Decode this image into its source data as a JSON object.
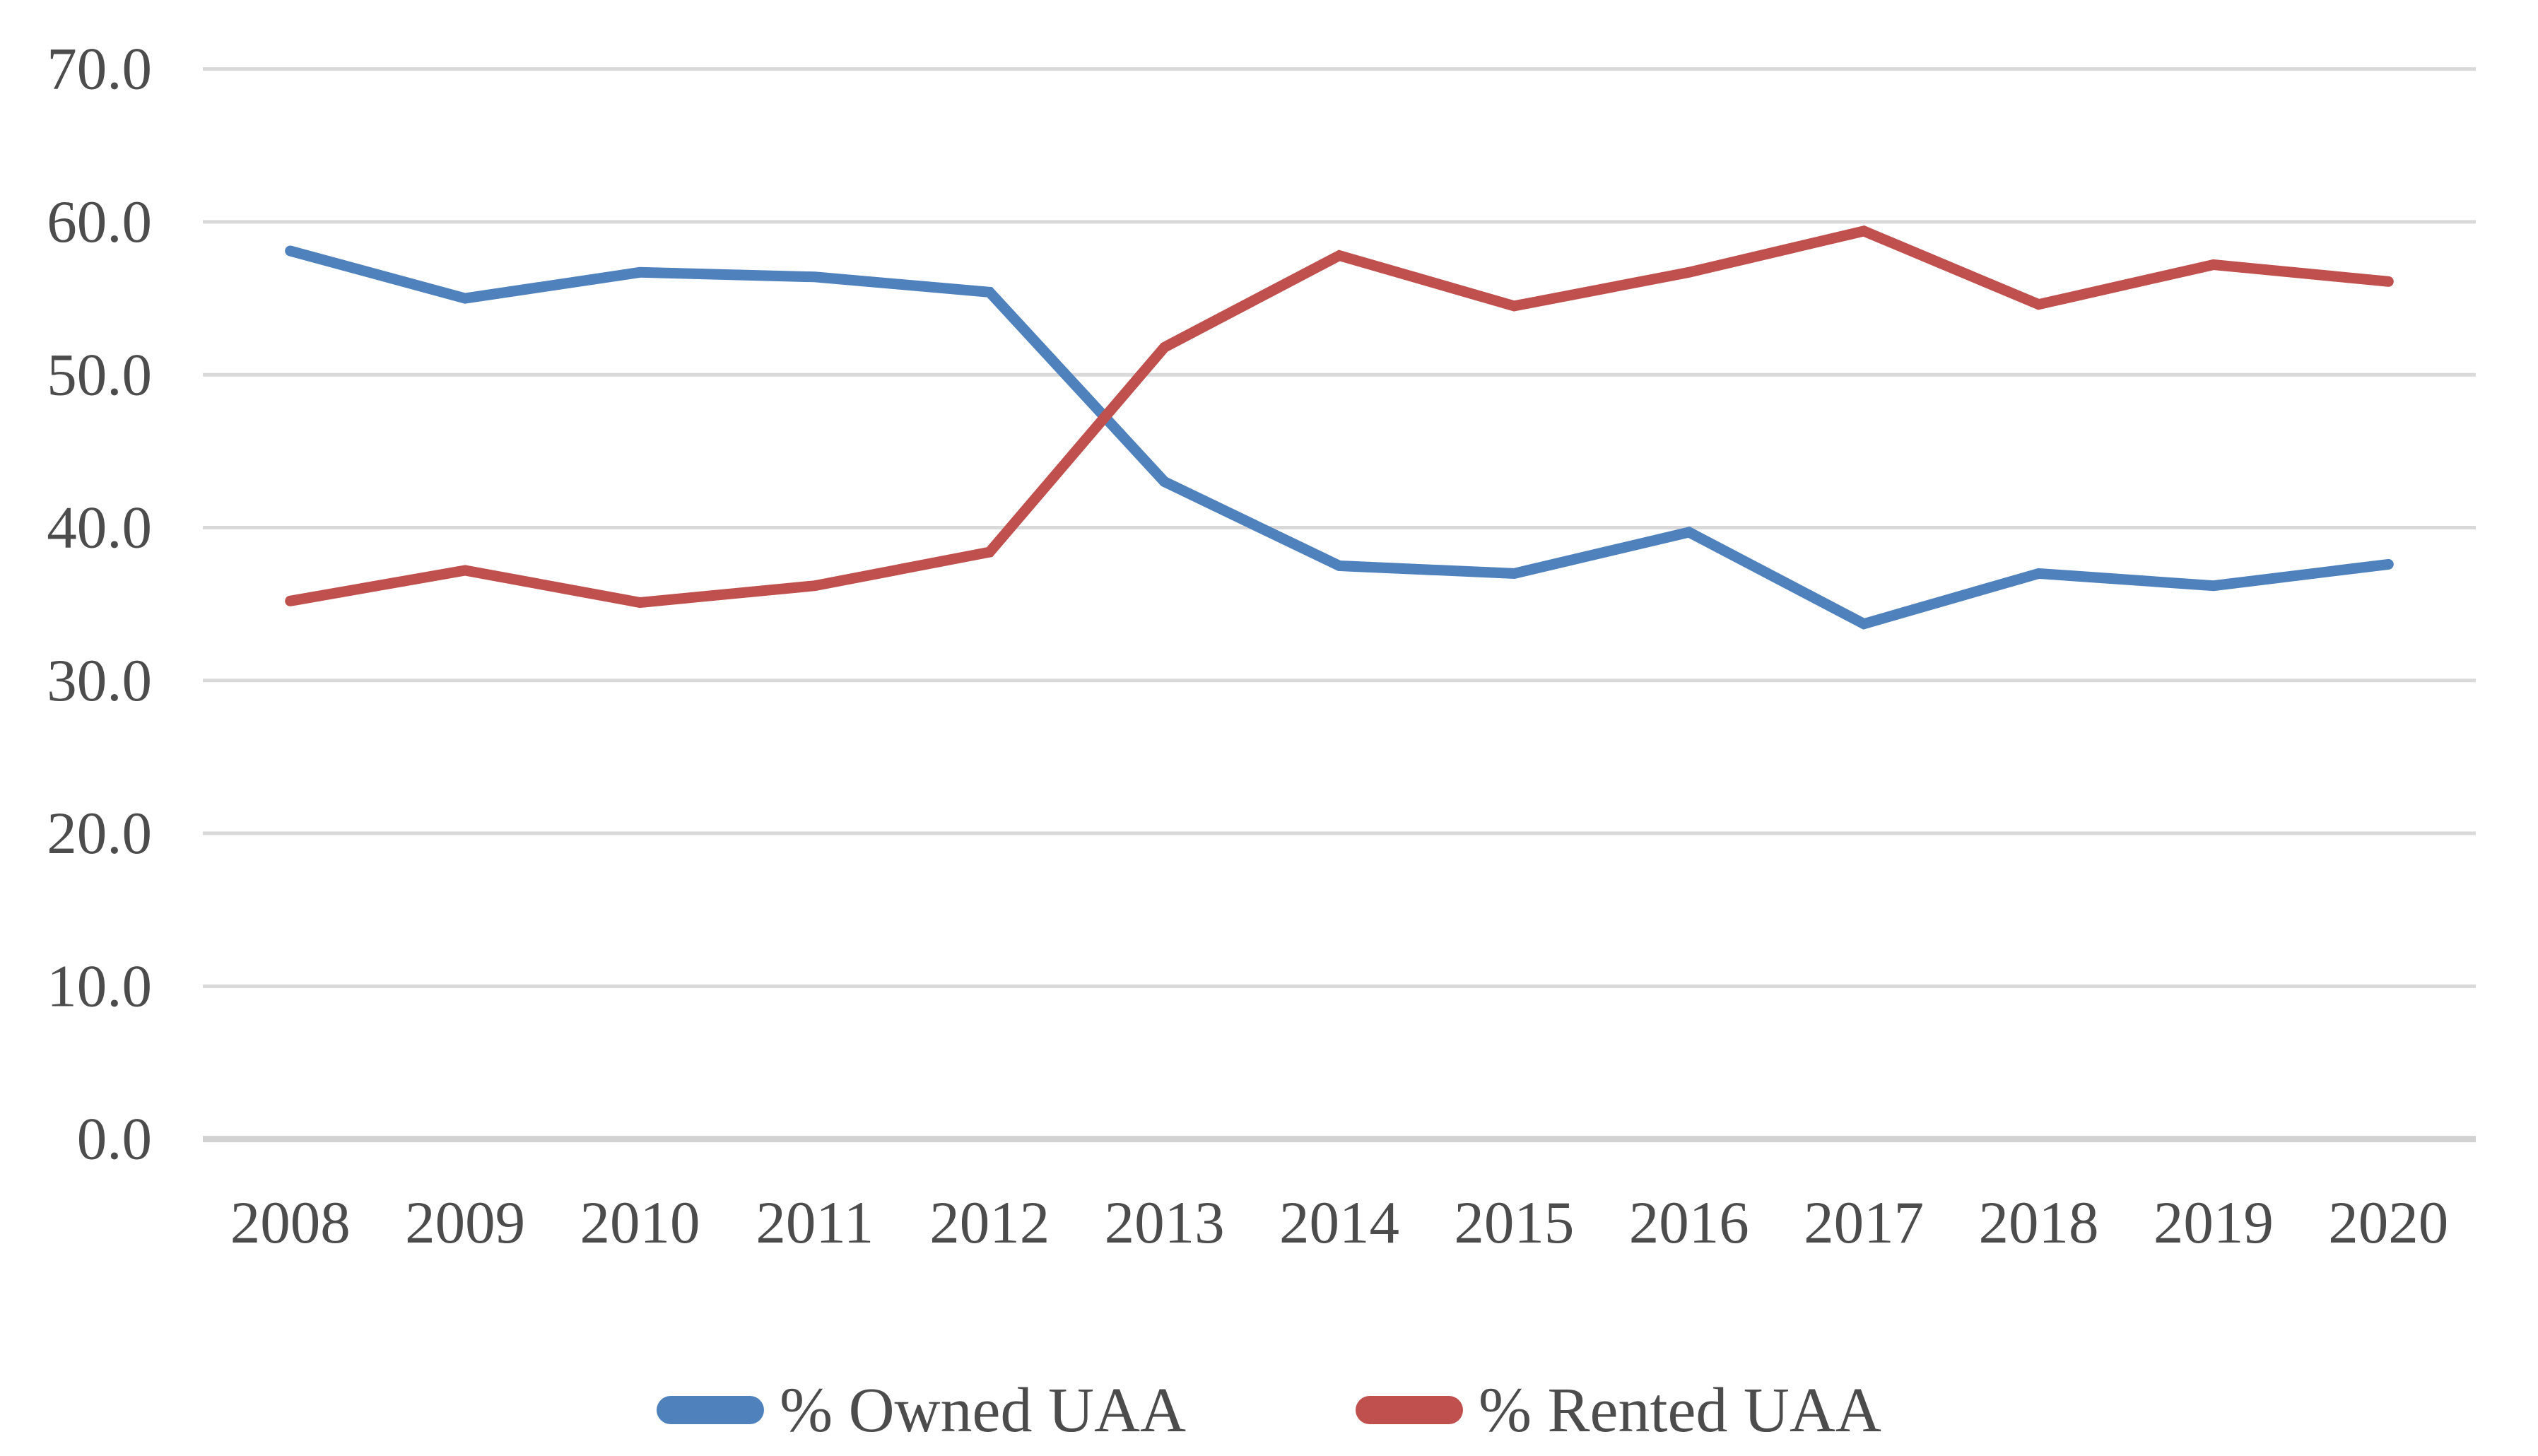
{
  "chart_data": {
    "type": "line",
    "title": "",
    "xlabel": "",
    "ylabel": "",
    "categories": [
      "2008",
      "2009",
      "2010",
      "2011",
      "2012",
      "2013",
      "2014",
      "2015",
      "2016",
      "2017",
      "2018",
      "2019",
      "2020"
    ],
    "series": [
      {
        "name": "% Owned UAA",
        "color": "#4F81BD",
        "values": [
          58.1,
          55.0,
          56.7,
          56.4,
          55.4,
          43.0,
          37.5,
          37.0,
          39.7,
          33.7,
          37.0,
          36.2,
          37.6
        ]
      },
      {
        "name": "% Rented UAA",
        "color": "#C0504D",
        "values": [
          35.2,
          37.2,
          35.1,
          36.2,
          38.4,
          51.8,
          57.8,
          54.5,
          56.7,
          59.4,
          54.6,
          57.2,
          56.1
        ]
      }
    ],
    "ylim": [
      0,
      70
    ],
    "ytick_step": 10,
    "ytick_labels": [
      "70.0",
      "60.0",
      "50.0",
      "40.0",
      "30.0",
      "20.0",
      "10.0",
      "0.0"
    ],
    "grid": "horizontal-on",
    "legend_position": "bottom-center",
    "colors": {
      "gridline": "#D9D9D9",
      "axis_line": "#D2D2D2",
      "tick_text": "#4c4c4c"
    }
  }
}
